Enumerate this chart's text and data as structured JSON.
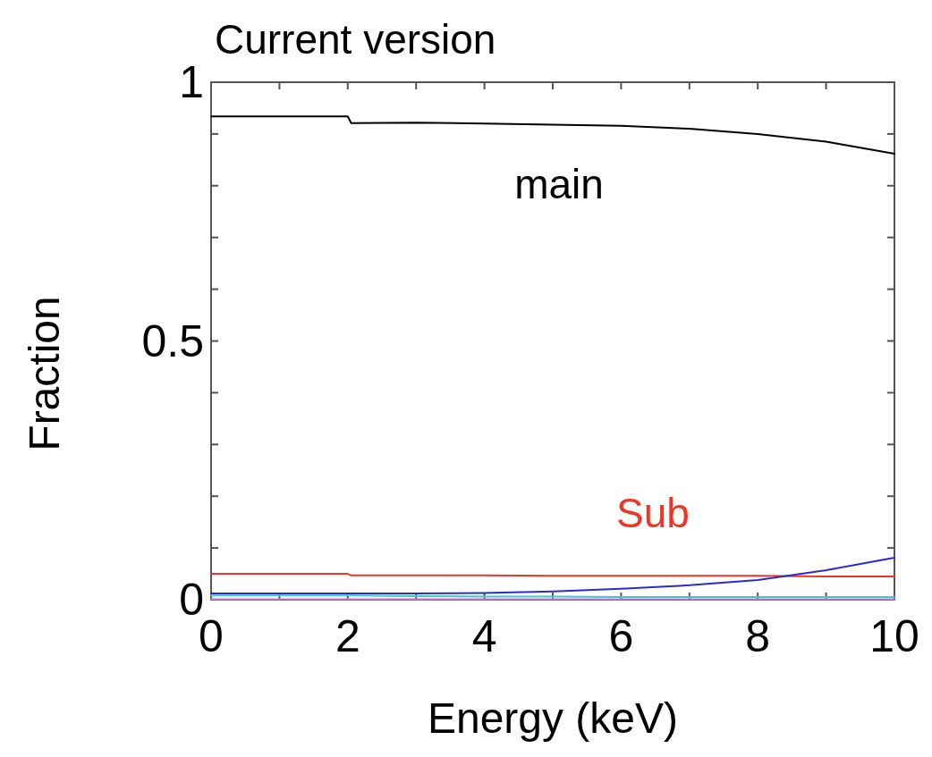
{
  "chart_data": {
    "type": "line",
    "title": "Current version",
    "xlabel": "Energy (keV)",
    "ylabel": "Fraction",
    "x": [
      0,
      1,
      2,
      2.05,
      3,
      4,
      5,
      6,
      7,
      8,
      9,
      10
    ],
    "series": [
      {
        "name": "main",
        "color": "#000000",
        "values": [
          0.934,
          0.934,
          0.934,
          0.921,
          0.922,
          0.92,
          0.918,
          0.916,
          0.91,
          0.9,
          0.885,
          0.862
        ]
      },
      {
        "name": "Sub",
        "color": "#e8382a",
        "values": [
          0.05,
          0.05,
          0.05,
          0.047,
          0.047,
          0.047,
          0.046,
          0.046,
          0.046,
          0.046,
          0.045,
          0.045
        ]
      },
      {
        "color": "#2b2bd0",
        "values": [
          0.012,
          0.012,
          0.012,
          0.012,
          0.012,
          0.013,
          0.016,
          0.021,
          0.028,
          0.038,
          0.057,
          0.081
        ]
      },
      {
        "color": "#40c8c8",
        "values": [
          0.008,
          0.008,
          0.008,
          0.008,
          0.007,
          0.006,
          0.006,
          0.005,
          0.005,
          0.005,
          0.005,
          0.005
        ]
      },
      {
        "color": "#d070d0",
        "values": [
          0.001,
          0.001,
          0.001,
          0.001,
          0.001,
          0.001,
          0.001,
          0.001,
          0.001,
          0.001,
          0.001,
          0.001
        ]
      }
    ],
    "xlim": [
      0,
      10
    ],
    "xticks": [
      0,
      {
        "value": 1,
        "label": null
      },
      2,
      {
        "value": 3,
        "label": null
      },
      4,
      {
        "value": 5,
        "label": null
      },
      6,
      {
        "value": 7,
        "label": null
      },
      8,
      {
        "value": 9,
        "label": null
      },
      10
    ],
    "ylim": [
      0,
      1
    ],
    "yticks": [
      0,
      {
        "value": 0.1,
        "label": null
      },
      {
        "value": 0.2,
        "label": null
      },
      {
        "value": 0.3,
        "label": null
      },
      {
        "value": 0.4,
        "label": null
      },
      0.5,
      {
        "value": 0.6,
        "label": null
      },
      {
        "value": 0.7,
        "label": null
      },
      {
        "value": 0.8,
        "label": null
      },
      {
        "value": 0.9,
        "label": null
      },
      1
    ],
    "grid": false,
    "marker": "none",
    "line_style": "solid"
  }
}
